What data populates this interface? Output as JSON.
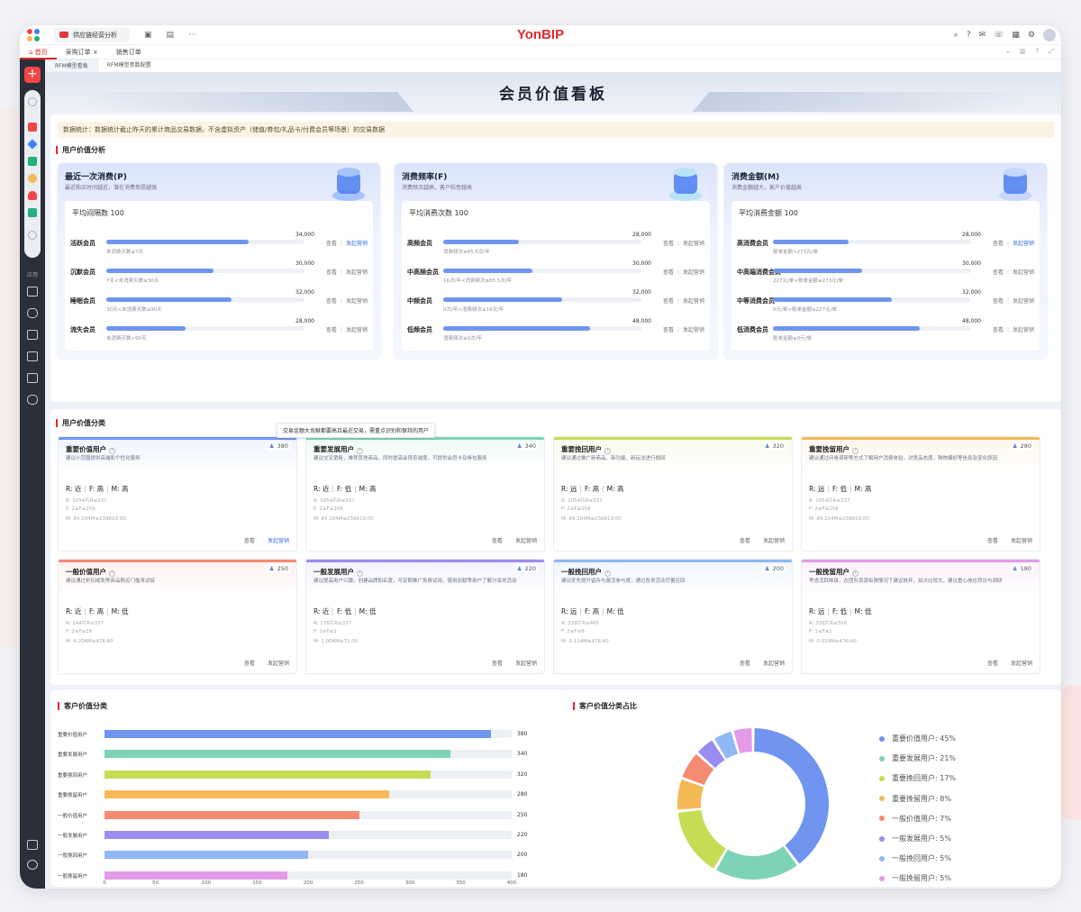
{
  "topbar": {
    "app_tab": "供应链经营分析",
    "logo": "YonBIP"
  },
  "tabs": {
    "home": "首页",
    "t1": "采购订单",
    "t2": "销售订单"
  },
  "content_tabs": [
    "RFM模型看板",
    "RFM模型参数配置"
  ],
  "title": "会员价值看板",
  "note": "数据统计：数据统计截止昨天的累计商品交易数据，不含虚拟资产（储值/券包/礼品卡/付费会员等场景）的交易数据",
  "sidebar": {
    "group_label": "应用"
  },
  "section1": {
    "title": "用户价值分析"
  },
  "metric_cards": [
    {
      "title": "最近一次消费(P)",
      "sub": "最近购买时间越近，潜在消费意愿越强",
      "avg": "平均间隔数 100",
      "color": "#6f95f0",
      "rows": [
        {
          "name": "活跃会员",
          "value": "34,000",
          "cond": "未消费天数≤7天",
          "pct": 0.72,
          "link": true
        },
        {
          "name": "沉默会员",
          "value": "30,000",
          "cond": "7天<未消费天数≤30天",
          "pct": 0.54,
          "link": false
        },
        {
          "name": "睡眠会员",
          "value": "32,000",
          "cond": "30天<未消费天数≤90天",
          "pct": 0.63,
          "link": false
        },
        {
          "name": "流失会员",
          "value": "28,000",
          "cond": "未消费天数>90天",
          "pct": 0.4,
          "link": false
        }
      ]
    },
    {
      "title": "消费频率(F)",
      "sub": "消费频次越高，客户粘性越高",
      "avg": "平均消费次数 100",
      "color": "#6f95f0",
      "rows": [
        {
          "name": "高频会员",
          "value": "28,000",
          "cond": "消费频次≥65.5次/年",
          "pct": 0.38,
          "link": false
        },
        {
          "name": "中高频会员",
          "value": "30,000",
          "cond": "16次/年<消费频次≤65.5次/年",
          "pct": 0.45,
          "link": false
        },
        {
          "name": "中频会员",
          "value": "32,000",
          "cond": "0次/年<消费频次≤16次/年",
          "pct": 0.6,
          "link": false
        },
        {
          "name": "低频会员",
          "value": "48,000",
          "cond": "消费频次≤0次/年",
          "pct": 0.74,
          "link": false
        }
      ]
    },
    {
      "title": "消费金额(M)",
      "sub": "消费金额越大，客户价值越高",
      "avg": "平均消费金额 100",
      "color": "#6f95f0",
      "rows": [
        {
          "name": "高消费会员",
          "value": "28,000",
          "cond": "账单金额>273元/单",
          "pct": 0.38,
          "link": true
        },
        {
          "name": "中高端消费会员",
          "value": "30,000",
          "cond": "227元/单<账单金额≤273元/单",
          "pct": 0.45,
          "link": false
        },
        {
          "name": "中等消费会员",
          "value": "32,000",
          "cond": "0元/单<账单金额≤227元/单",
          "pct": 0.6,
          "link": false
        },
        {
          "name": "低消费会员",
          "value": "48,000",
          "cond": "账单金额≤0元/单",
          "pct": 0.74,
          "link": false
        }
      ]
    }
  ],
  "section2": {
    "title": "用户价值分类",
    "tooltip": "交易金额大贡献都要高且最近交易，需重点识别和保持的用户"
  },
  "actions": {
    "view": "查看",
    "market": "发起营销"
  },
  "seg_cards": [
    {
      "title": "重要价值用户",
      "count": "380",
      "desc": "建议小范围提供高端和个性化服务",
      "rfm": [
        "近",
        "高",
        "高"
      ],
      "r": "R: 1054片R≤337",
      "f": "F: 2≤F≤256",
      "m": "M: 84.104M≤239619.00",
      "color": "#6f95f0",
      "bg": "#eef3fd"
    },
    {
      "title": "重要发展用户",
      "count": "340",
      "desc": "建议交叉销售，推荐其他商品，同时提高会员忠诚度，可提供会员卡及券包服务",
      "rfm": [
        "近",
        "低",
        "高"
      ],
      "r": "R: 1054片R≤337",
      "f": "F: 2≤F≤256",
      "m": "M: 84.104M≤239619.00",
      "color": "#7dd3b8",
      "bg": "#eefaf6"
    },
    {
      "title": "重要挽回用户",
      "count": "320",
      "desc": "建议通过推广新商品、新功能、新玩法进行挽回",
      "rfm": [
        "远",
        "高",
        "高"
      ],
      "r": "R: 1054片R≤337",
      "f": "F: 2≤F≤256",
      "m": "M: 84.104M≤239619.00",
      "color": "#c7dc54",
      "bg": "#f7faea"
    },
    {
      "title": "重要挽留用户",
      "count": "280",
      "desc": "建议通过问卷调研等方式了解用户消费体验，对竞品态度，购物偏好等信息及变化原因",
      "rfm": [
        "远",
        "低",
        "高"
      ],
      "r": "R: 1054片R≤337",
      "f": "F: 2≤F≤256",
      "m": "M: 84.104M≤239619.00",
      "color": "#f6b957",
      "bg": "#fdf6ea"
    },
    {
      "title": "一般价值用户",
      "count": "250",
      "desc": "建议通过折扣或免等商品购买门槛来试探",
      "rfm": [
        "近",
        "高",
        "低"
      ],
      "r": "R: 144片R≤337",
      "f": "F: 2≤F≤16",
      "m": "M: 4.204M≤476.60",
      "color": "#f58a72",
      "bg": "#fdf0ec"
    },
    {
      "title": "一般发展用户",
      "count": "220",
      "desc": "建议提高用户兴趣，创建品牌知名度，可定期推广免费试用，使用加赋等用户了解分享的活动",
      "rfm": [
        "近",
        "低",
        "低"
      ],
      "r": "R: 176片R≤337",
      "f": "F: 1≤F≤1",
      "m": "M: 1.004M≤72.00",
      "color": "#9b8cf0",
      "bg": "#f3f1fd"
    },
    {
      "title": "一般挽回用户",
      "count": "200",
      "desc": "建议优先提升留存与激活参与度，通过各类活动尽量召回",
      "rfm": [
        "远",
        "高",
        "低"
      ],
      "r": "R: 338片R≤465",
      "f": "F: 2≤F≤8",
      "m": "M: 0.114M≤476.60",
      "color": "#8fb8f5",
      "bg": "#eef4fd"
    },
    {
      "title": "一般挽留用户",
      "count": "180",
      "desc": "考虑活跃降级，在团队资源有限情况下建议放弃，如占比较大，建议重心放在拜访与调研",
      "rfm": [
        "远",
        "低",
        "低"
      ],
      "r": "R: 338片R≤500",
      "f": "F: 1≤F≤1",
      "m": "M: 0.014M≤476.60",
      "color": "#e39be8",
      "bg": "#fcf0fc"
    }
  ],
  "section3": {
    "title_left": "客户价值分类",
    "title_right": "客户价值分类占比"
  },
  "chart_data": [
    {
      "type": "bar",
      "orientation": "horizontal",
      "title": "客户价值分类",
      "categories": [
        "重要价值用户",
        "重要发展用户",
        "重要挽回用户",
        "重要挽留用户",
        "一般价值用户",
        "一般发展用户",
        "一般挽回用户",
        "一般挽留用户"
      ],
      "values": [
        380,
        340,
        320,
        280,
        250,
        220,
        200,
        180
      ],
      "xlim": [
        0,
        400
      ],
      "xticks": [
        0,
        50,
        100,
        150,
        200,
        250,
        300,
        350,
        400
      ],
      "colors": [
        "#6f95f0",
        "#7dd3b8",
        "#c7dc54",
        "#f6b957",
        "#f58a72",
        "#9b8cf0",
        "#8fb8f5",
        "#e39be8"
      ]
    },
    {
      "type": "pie",
      "donut": true,
      "title": "客户价值分类占比",
      "labels": [
        "重要价值用户",
        "重要发展用户",
        "重要挽回用户",
        "重要挽留用户",
        "一般价值用户",
        "一般发展用户",
        "一般挽回用户",
        "一般挽留用户"
      ],
      "values": [
        45,
        21,
        17,
        8,
        7,
        5,
        5,
        5
      ],
      "legend": [
        "重要价值用户: 45%",
        "重要发展用户: 21%",
        "重要挽回用户: 17%",
        "重要挽留用户: 8%",
        "一般价值用户: 7%",
        "一般发展用户: 5%",
        "一般挽回用户: 5%",
        "一般挽留用户: 5%"
      ],
      "colors": [
        "#6f95f0",
        "#7dd3b8",
        "#c7dc54",
        "#f6b957",
        "#f58a72",
        "#9b8cf0",
        "#8fb8f5",
        "#e39be8"
      ]
    }
  ]
}
